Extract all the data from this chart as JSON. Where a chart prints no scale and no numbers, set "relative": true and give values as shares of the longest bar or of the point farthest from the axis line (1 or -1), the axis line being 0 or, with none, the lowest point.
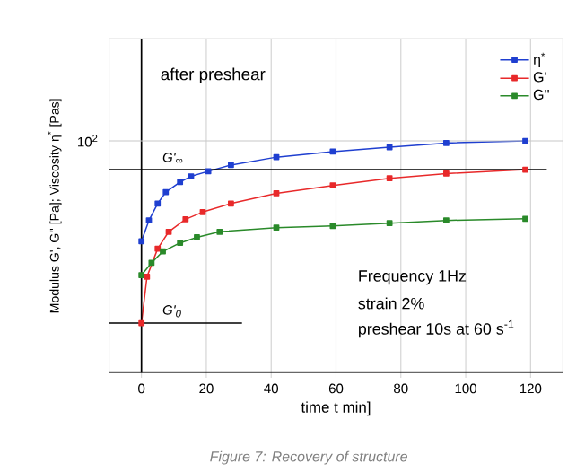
{
  "chart_data": {
    "type": "line",
    "relative": true,
    "xlabel": "time t min]",
    "ylabel": "Modulus G', G'' [Pa]; Viscosity η$^{*}$ [Pas]",
    "xlim": [
      -10,
      130
    ],
    "xticks": [
      0,
      20,
      40,
      60,
      80,
      100,
      120
    ],
    "grid": "x",
    "legend": "top right",
    "line_style": "solid",
    "series": [
      {
        "name": "η$^{*}$",
        "color": "#1f3fd0",
        "marker": "square",
        "x": [
          0,
          2.3,
          5,
          7.5,
          11.9,
          15.3,
          20.6,
          27.6,
          41.6,
          59,
          76.5,
          94,
          118.4
        ],
        "values": [
          0.567,
          0.657,
          0.73,
          0.779,
          0.823,
          0.847,
          0.869,
          0.896,
          0.93,
          0.954,
          0.973,
          0.991,
          1.0
        ]
      },
      {
        "name": "G'",
        "color": "#e8292a",
        "marker": "square",
        "x": [
          0,
          1.7,
          5,
          8.4,
          13.6,
          18.9,
          27.6,
          41.6,
          59,
          76.5,
          94,
          118.4
        ],
        "values": [
          0.214,
          0.414,
          0.535,
          0.608,
          0.662,
          0.693,
          0.73,
          0.774,
          0.808,
          0.839,
          0.859,
          0.876
        ]
      },
      {
        "name": "G''",
        "color": "#2a8a2a",
        "marker": "square",
        "x": [
          0,
          3.1,
          6.6,
          11.9,
          17.1,
          24.1,
          41.6,
          59,
          76.5,
          94,
          118.4
        ],
        "values": [
          0.421,
          0.474,
          0.523,
          0.56,
          0.584,
          0.608,
          0.626,
          0.633,
          0.645,
          0.657,
          0.664
        ]
      },
      {
        "name": "G'$_{∞}$",
        "color": "#000000",
        "marker": "none",
        "x": [
          -10,
          125
        ],
        "values": [
          0.876,
          0.876
        ]
      },
      {
        "name": "G'$_{0}$",
        "color": "#000000",
        "marker": "none",
        "x": [
          -10,
          31
        ],
        "values": [
          0.214,
          0.214
        ]
      }
    ],
    "ref_lines": [
      {
        "axis": "x",
        "value": 0,
        "color": "#000000"
      },
      {
        "axis": "y",
        "value": 1.0,
        "color": "#c8c8c8"
      }
    ],
    "annotations": [
      "10$^{2}$",
      "after preshear",
      "Frequency 1Hz",
      "strain 2%",
      "preshear 10s at 60 s$^{-1}$",
      "Figure 7: Recovery of structure"
    ]
  }
}
